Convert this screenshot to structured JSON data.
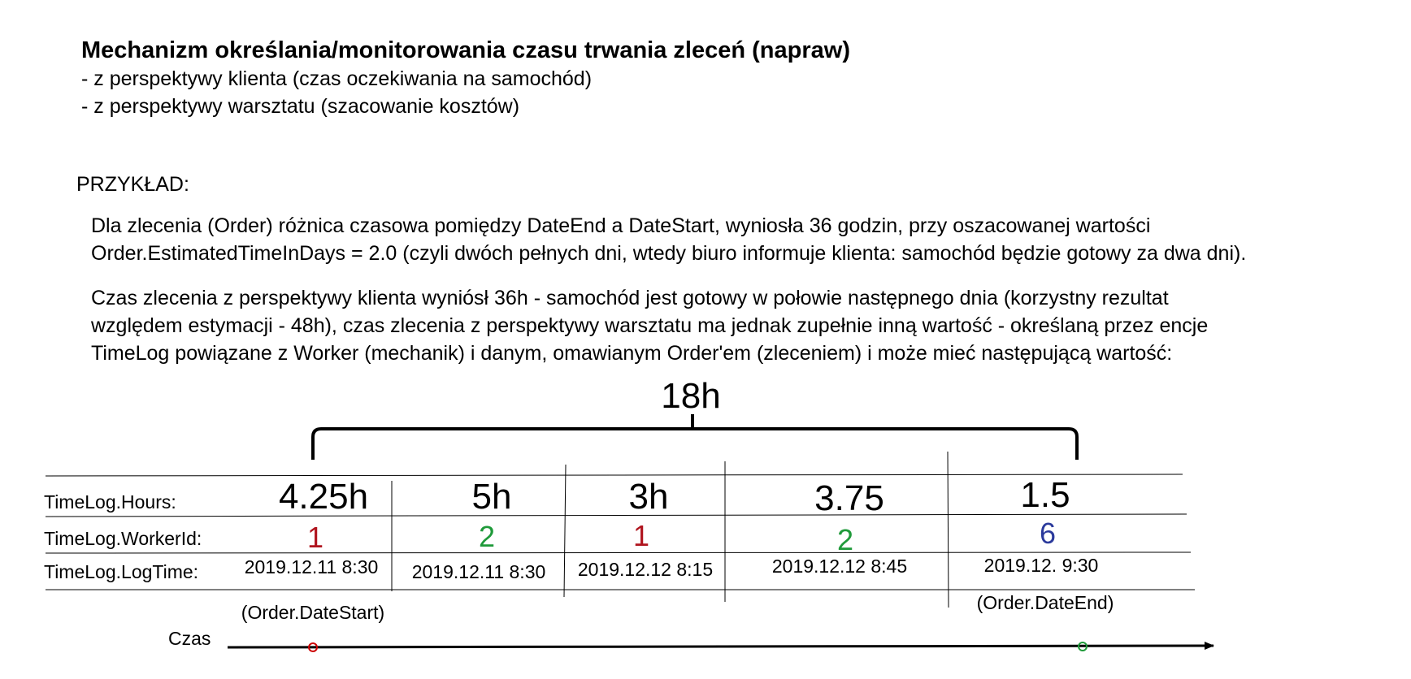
{
  "title": "Mechanizm określania/monitorowania czasu trwania zleceń (napraw)",
  "subtitles": [
    "- z perspektywy klienta (czas oczekiwania na samochód)",
    "- z perspektywy warsztatu (szacowanie kosztów)"
  ],
  "example_label": "PRZYKŁAD:",
  "paragraph1": [
    "Dla zlecenia (Order) różnica czasowa pomiędzy DateEnd a DateStart, wyniosła 36 godzin, przy oszacowanej wartości",
    "Order.EstimatedTimeInDays = 2.0 (czyli dwóch pełnych dni, wtedy biuro informuje klienta: samochód będzie gotowy za dwa dni)."
  ],
  "paragraph2": [
    "Czas zlecenia z perspektywy klienta wyniósł 36h - samochód jest gotowy w połowie następnego dnia (korzystny rezultat",
    "względem estymacji - 48h), czas zlecenia z perspektywy warsztatu ma jednak zupełnie inną wartość - określaną przez encje",
    "TimeLog powiązane z Worker (mechanik) i danym, omawianym Order'em (zleceniem) i może mieć następującą wartość:"
  ],
  "diagram": {
    "total": "18h",
    "row_labels": {
      "hours": "TimeLog.Hours:",
      "worker": "TimeLog.WorkerId:",
      "logtime": "TimeLog.LogTime:"
    },
    "entries": [
      {
        "hours": "4.25h",
        "worker": "1",
        "logtime": "2019.12.11 8:30",
        "worker_color": "#b0141e"
      },
      {
        "hours": "5h",
        "worker": "2",
        "logtime": "2019.12.11 8:30",
        "worker_color": "#1f9a3a"
      },
      {
        "hours": "3h",
        "worker": "1",
        "logtime": "2019.12.12 8:15",
        "worker_color": "#b0141e"
      },
      {
        "hours": "3.75",
        "worker": "2",
        "logtime": "2019.12.12 8:45",
        "worker_color": "#1f9a3a"
      },
      {
        "hours": "1.5",
        "worker": "6",
        "logtime": "2019.12. 9:30",
        "worker_color": "#2b3a9c"
      }
    ],
    "date_start_label": "(Order.DateStart)",
    "date_end_label": "(Order.DateEnd)",
    "axis_label": "Czas",
    "start_marker_color": "#cc0000",
    "end_marker_color": "#1f9a3a"
  }
}
